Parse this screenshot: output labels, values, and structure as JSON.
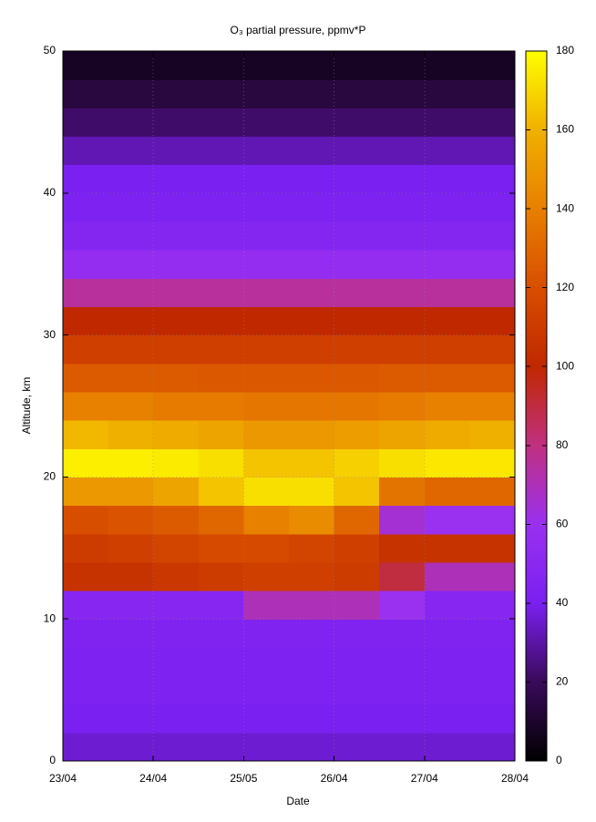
{
  "chart_data": {
    "type": "heatmap",
    "title": "O₃ partial pressure, ppmv*P",
    "xlabel": "Date",
    "ylabel": "Altitude, km",
    "xlim": [
      0,
      5
    ],
    "xticks": [
      {
        "value": 0,
        "label": "23/04"
      },
      {
        "value": 1,
        "label": "24/04"
      },
      {
        "value": 2,
        "label": "25/05"
      },
      {
        "value": 3,
        "label": "26/04"
      },
      {
        "value": 4,
        "label": "27/04"
      },
      {
        "value": 5,
        "label": "28/04"
      }
    ],
    "ylim": [
      0,
      50
    ],
    "yticks": [
      0,
      10,
      20,
      30,
      40,
      50
    ],
    "grid": true,
    "x": [
      0.25,
      0.75,
      1.25,
      1.75,
      2.25,
      2.75,
      3.25,
      3.75,
      4.25,
      4.75
    ],
    "y": [
      1,
      3,
      5,
      7,
      9,
      11,
      13,
      15,
      17,
      19,
      21,
      23,
      25,
      27,
      29,
      31,
      33,
      35,
      37,
      39,
      41,
      43,
      45,
      47,
      49
    ],
    "z": [
      [
        36,
        36,
        36,
        36,
        36,
        36,
        36,
        36,
        36,
        36
      ],
      [
        40,
        40,
        40,
        40,
        40,
        40,
        40,
        40,
        40,
        40
      ],
      [
        42,
        42,
        42,
        42,
        42,
        42,
        42,
        42,
        42,
        42
      ],
      [
        42,
        42,
        42,
        42,
        42,
        42,
        42,
        42,
        42,
        42
      ],
      [
        44,
        44,
        44,
        44,
        44,
        44,
        44,
        44,
        44,
        44
      ],
      [
        48,
        48,
        48,
        48,
        70,
        70,
        70,
        60,
        48,
        48
      ],
      [
        105,
        105,
        108,
        110,
        112,
        112,
        110,
        90,
        70,
        70
      ],
      [
        110,
        112,
        115,
        118,
        118,
        115,
        112,
        105,
        105,
        105
      ],
      [
        120,
        122,
        125,
        130,
        140,
        145,
        130,
        65,
        60,
        60
      ],
      [
        150,
        150,
        155,
        165,
        172,
        172,
        165,
        135,
        130,
        130
      ],
      [
        176,
        176,
        175,
        172,
        165,
        165,
        168,
        172,
        174,
        174
      ],
      [
        162,
        160,
        158,
        155,
        150,
        150,
        152,
        155,
        158,
        160
      ],
      [
        140,
        140,
        138,
        138,
        136,
        136,
        136,
        138,
        140,
        140
      ],
      [
        125,
        125,
        125,
        124,
        124,
        124,
        124,
        125,
        125,
        125
      ],
      [
        112,
        112,
        112,
        112,
        112,
        112,
        112,
        112,
        112,
        112
      ],
      [
        100,
        100,
        100,
        100,
        100,
        100,
        100,
        100,
        100,
        100
      ],
      [
        75,
        75,
        75,
        75,
        75,
        75,
        75,
        75,
        75,
        75
      ],
      [
        56,
        56,
        56,
        56,
        56,
        56,
        56,
        56,
        56,
        56
      ],
      [
        46,
        46,
        46,
        46,
        46,
        46,
        46,
        46,
        46,
        46
      ],
      [
        42,
        42,
        42,
        42,
        42,
        42,
        42,
        42,
        42,
        42
      ],
      [
        40,
        40,
        40,
        40,
        40,
        40,
        40,
        40,
        40,
        40
      ],
      [
        32,
        32,
        32,
        32,
        32,
        32,
        32,
        32,
        32,
        32
      ],
      [
        22,
        22,
        22,
        22,
        22,
        22,
        22,
        22,
        22,
        22
      ],
      [
        14,
        14,
        14,
        14,
        14,
        14,
        14,
        14,
        14,
        14
      ],
      [
        8,
        8,
        8,
        8,
        8,
        8,
        8,
        8,
        8,
        8
      ]
    ],
    "colorbar_lim": [
      0,
      180
    ],
    "colorbar_ticks": [
      0,
      20,
      40,
      60,
      80,
      100,
      120,
      140,
      160,
      180
    ],
    "colormap": [
      "#000000",
      "#3a0a5a",
      "#7a20f0",
      "#9a30f0",
      "#c03080",
      "#c02800",
      "#d84e00",
      "#e88000",
      "#f0b000",
      "#ffff00"
    ]
  }
}
